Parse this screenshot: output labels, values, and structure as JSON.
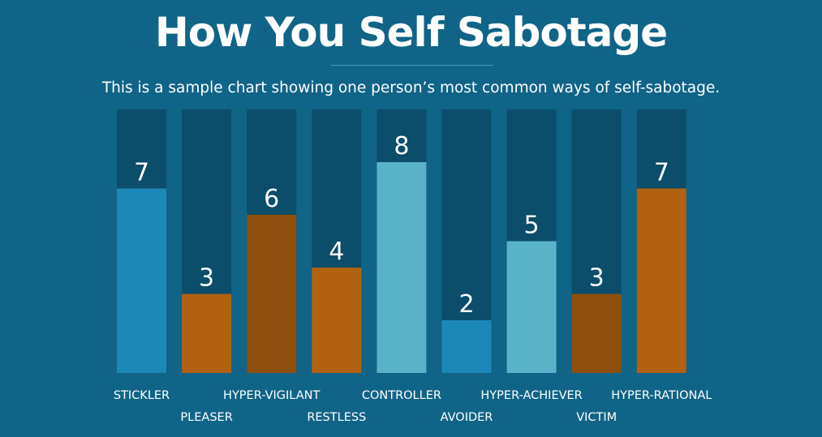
{
  "header": {
    "title": "How You Self Sabotage",
    "subtitle": "This is a sample chart showing one person’s most common ways of self-sabotage."
  },
  "colors": {
    "background": "#106487",
    "track": "#0b4d6a",
    "blue": "#1c88b7",
    "light_blue": "#5ab2c9",
    "orange": "#b06211",
    "dark_orange": "#8d4f0b"
  },
  "chart_data": {
    "type": "bar",
    "title": "How You Self Sabotage",
    "categories": [
      "STICKLER",
      "PLEASER",
      "HYPER-VIGILANT",
      "RESTLESS",
      "CONTROLLER",
      "AVOIDER",
      "HYPER-ACHIEVER",
      "VICTIM",
      "HYPER-RATIONAL"
    ],
    "values": [
      7,
      3,
      6,
      4,
      8,
      2,
      5,
      3,
      7
    ],
    "bar_colors": [
      "blue",
      "orange",
      "dark_orange",
      "orange",
      "light_blue",
      "blue",
      "light_blue",
      "dark_orange",
      "orange"
    ],
    "ylim": [
      0,
      10
    ],
    "xlabel": "",
    "ylabel": "",
    "grid": false,
    "legend": "none",
    "data_labels": true
  }
}
